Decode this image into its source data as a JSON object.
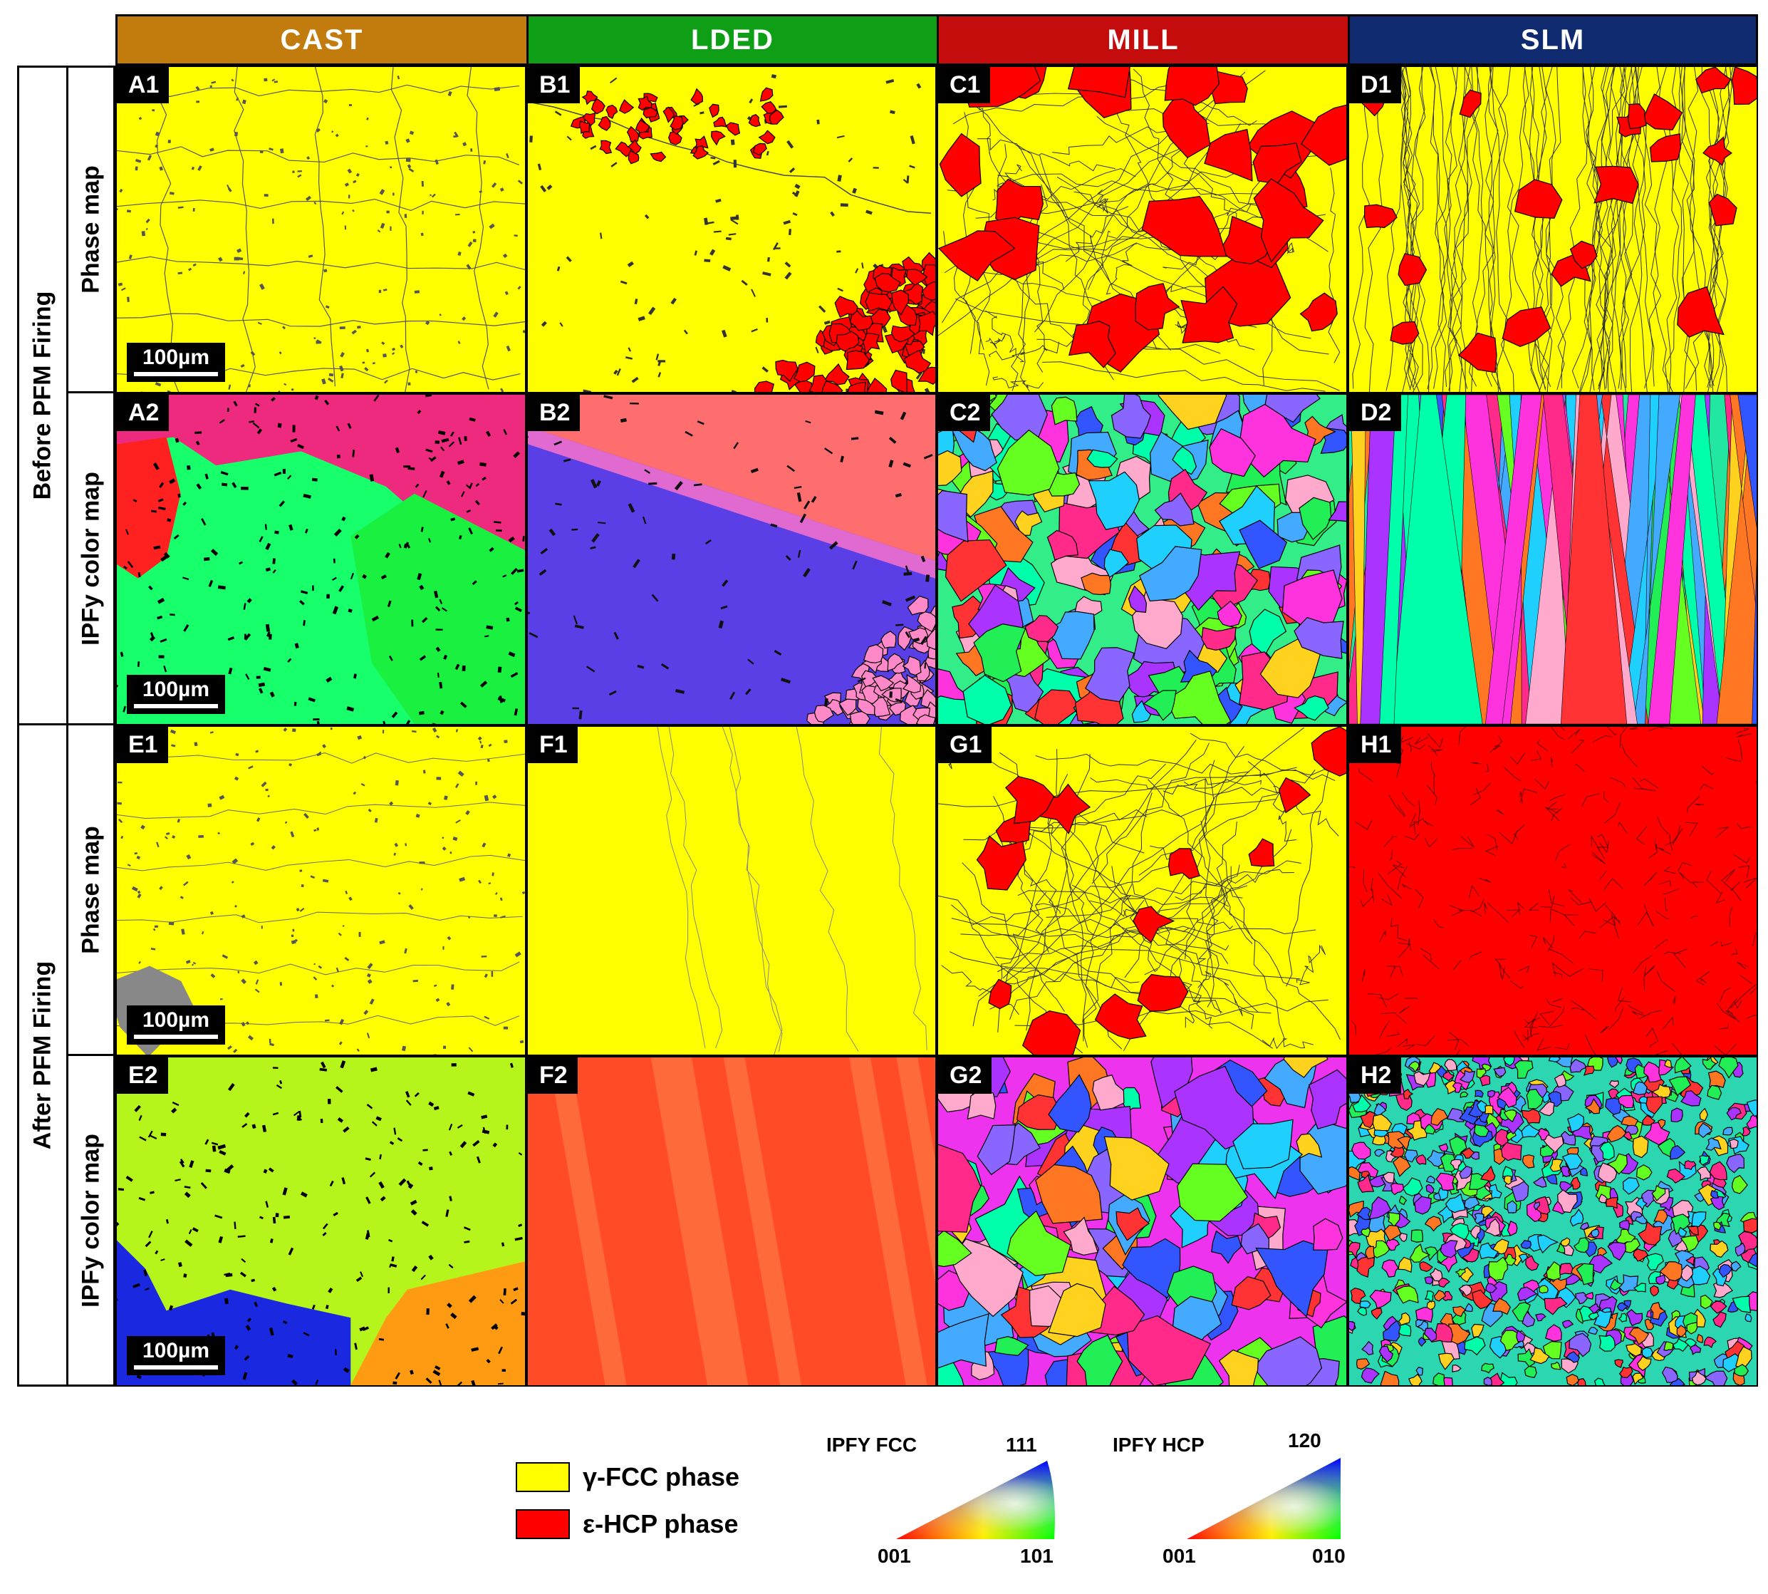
{
  "columns": [
    {
      "label": "CAST",
      "color": "#C27C0E"
    },
    {
      "label": "LDED",
      "color": "#0E9F17"
    },
    {
      "label": "MILL",
      "color": "#C40C0C"
    },
    {
      "label": "SLM",
      "color": "#0F2A6E"
    }
  ],
  "row_groups": {
    "before": "Before PFM Firing",
    "after": "After PFM Firing"
  },
  "row_subs": {
    "before_phase": "Phase map",
    "before_ipf": "IPFy color map",
    "after_phase": "Phase map",
    "after_ipf": "IPFy color map"
  },
  "panels": {
    "A1": "A1",
    "B1": "B1",
    "C1": "C1",
    "D1": "D1",
    "A2": "A2",
    "B2": "B2",
    "C2": "C2",
    "D2": "D2",
    "E1": "E1",
    "F1": "F1",
    "G1": "G1",
    "H1": "H1",
    "E2": "E2",
    "F2": "F2",
    "G2": "G2",
    "H2": "H2"
  },
  "scale_bar": "100µm",
  "legend": {
    "fcc_label": "γ-FCC phase",
    "fcc_color": "#FFFF00",
    "hcp_label": "ε-HCP phase",
    "hcp_color": "#FF0000"
  },
  "ipf_fcc": {
    "title": "IPFY FCC",
    "top": "111",
    "left": "001",
    "right": "101"
  },
  "ipf_hcp": {
    "title": "IPFY HCP",
    "top": "120",
    "left": "001",
    "right": "010"
  }
}
